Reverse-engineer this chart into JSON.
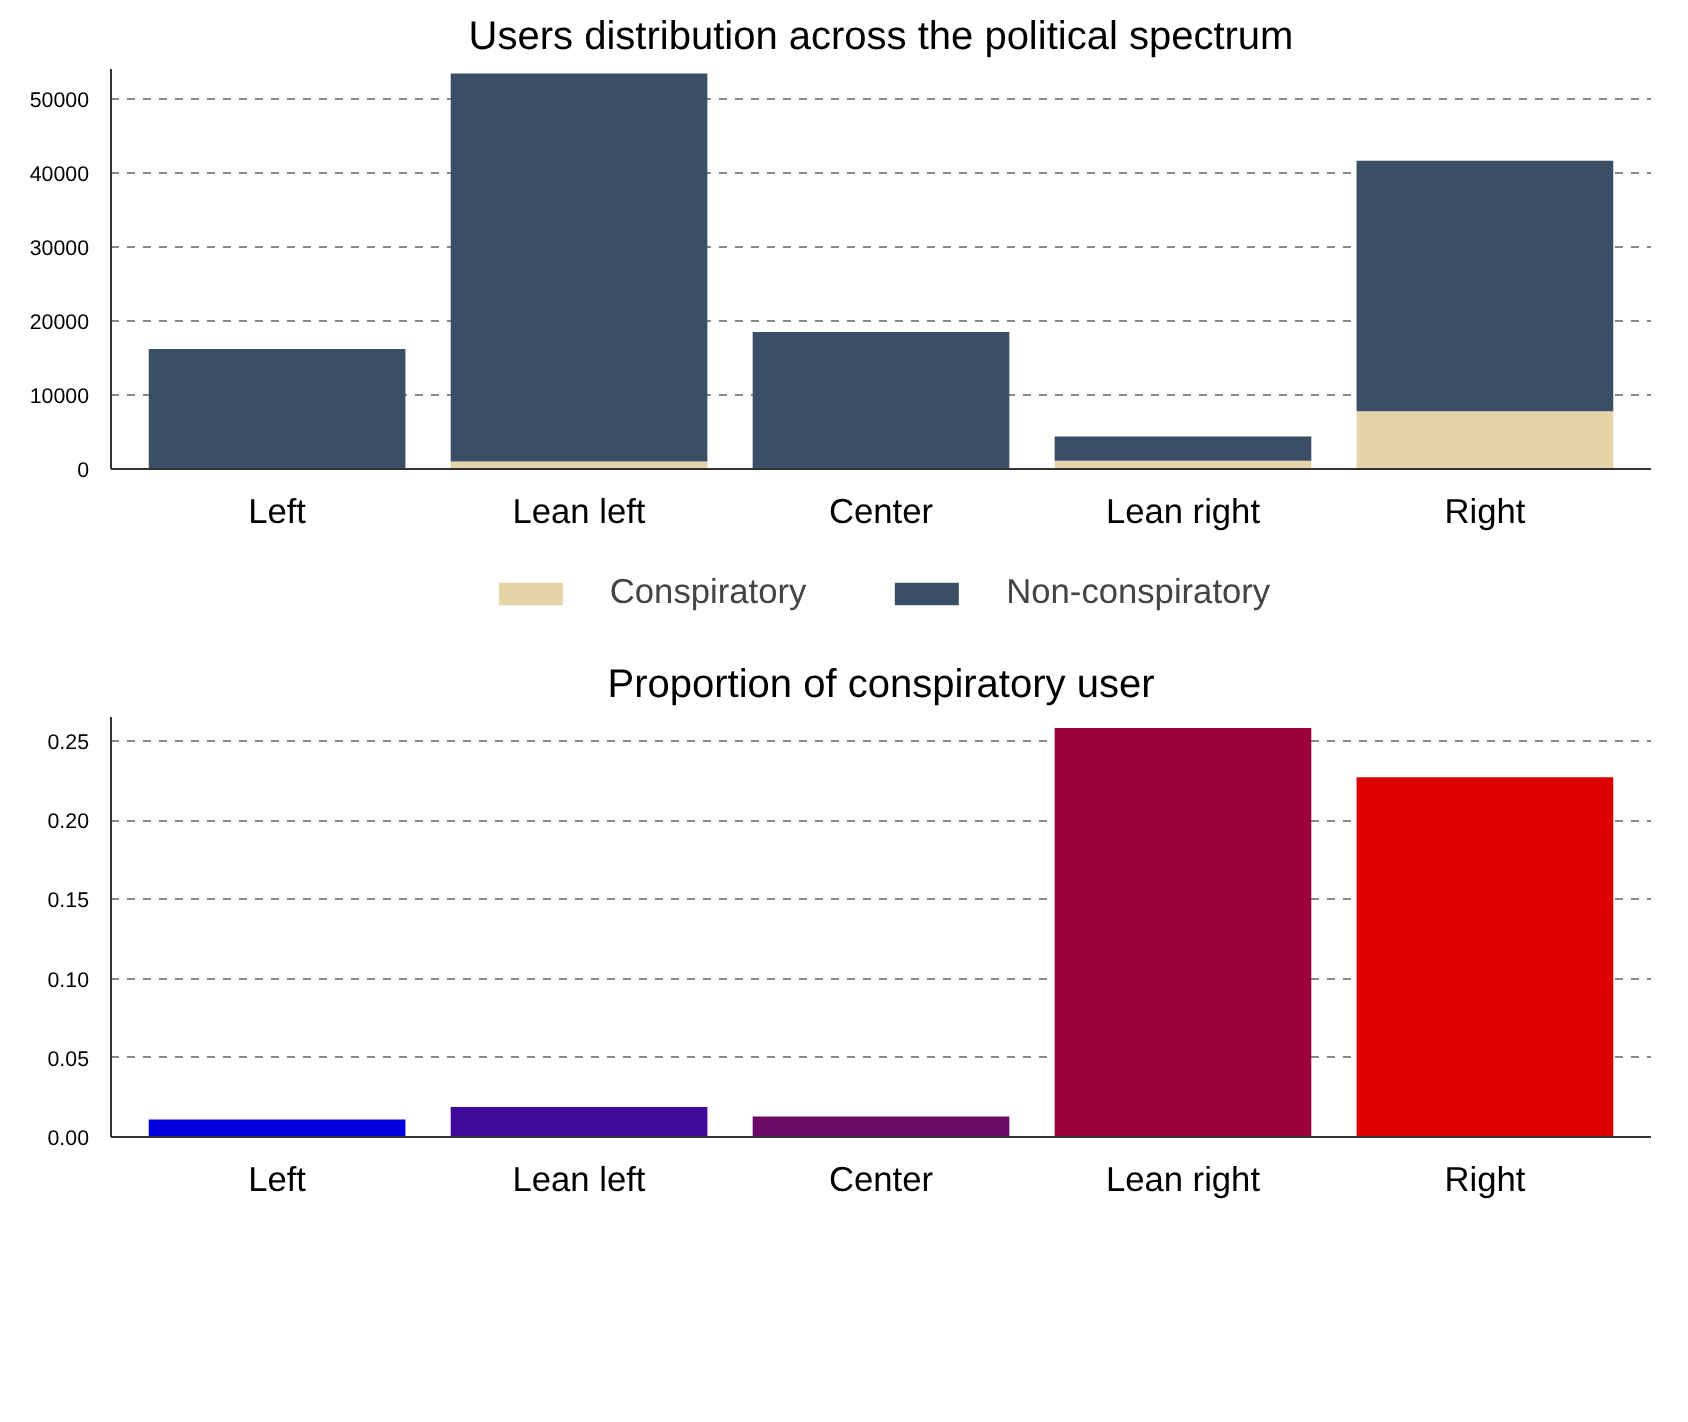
{
  "chart_data": [
    {
      "type": "bar",
      "title": "Users distribution across the political spectrum",
      "categories": [
        "Left",
        "Lean left",
        "Center",
        "Lean right",
        "Right"
      ],
      "stacked": true,
      "series": [
        {
          "name": "Conspiratory",
          "color": "#e6d4a9",
          "values": [
            null,
            1000,
            null,
            1100,
            7800
          ]
        },
        {
          "name": "Non-conspiratory",
          "color": "#3a4f66",
          "values": [
            16200,
            52400,
            18500,
            3300,
            33800
          ]
        }
      ],
      "ylim": [
        0,
        54000
      ],
      "yticks": [
        0,
        10000,
        20000,
        30000,
        40000,
        50000
      ],
      "grid": "y",
      "legend": "bottom"
    },
    {
      "type": "bar",
      "title": "Proportion of conspiratory user",
      "categories": [
        "Left",
        "Lean left",
        "Center",
        "Lean right",
        "Right"
      ],
      "values": [
        0.011,
        0.019,
        0.013,
        0.258,
        0.227
      ],
      "colors": [
        "#0000dd",
        "#3f0a99",
        "#6b0a66",
        "#9b0039",
        "#dd0000"
      ],
      "ylim": [
        0,
        0.265
      ],
      "yticks": [
        {
          "value": 0,
          "label": "0.00"
        },
        {
          "value": 0.05,
          "label": "0.05"
        },
        {
          "value": 0.1,
          "label": "0.10"
        },
        {
          "value": 0.15,
          "label": "0.15"
        },
        {
          "value": 0.2,
          "label": "0.20"
        },
        {
          "value": 0.25,
          "label": "0.25"
        }
      ],
      "grid": "y"
    }
  ]
}
